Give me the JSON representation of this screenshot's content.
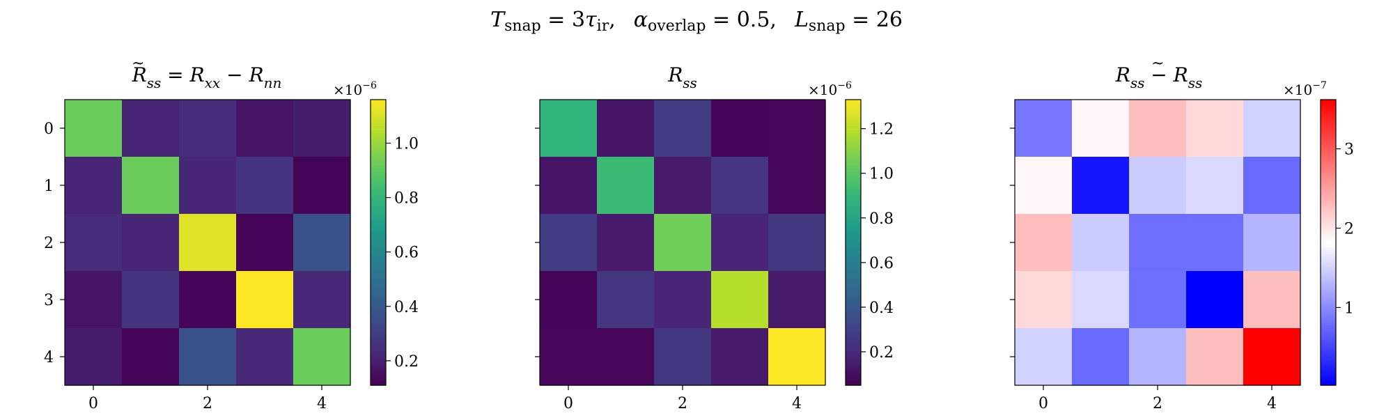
{
  "figure": {
    "suptitle": {
      "t_sym": "T",
      "t_sub": "snap",
      "t_rhs": " = 3",
      "tau_sym": "τ",
      "tau_sub": "ir",
      "sep1": ",",
      "a_sym": "α",
      "a_sub": "overlap",
      "a_rhs": " = 0.5",
      "sep2": ",",
      "l_sym": "L",
      "l_sub": "snap",
      "l_rhs": " = 26"
    }
  },
  "panels": [
    {
      "title": {
        "r1": "R",
        "tilde": "~",
        "s1": "ss",
        "eq": " = ",
        "r2": "R",
        "s2": "xx",
        "minus": " − ",
        "r3": "R",
        "s3": "nn"
      },
      "yticks": [
        "0",
        "1",
        "2",
        "3",
        "4"
      ],
      "xticks": [
        "0",
        "2",
        "4"
      ],
      "colorbar": {
        "offset_base": "×10",
        "offset_exp": "−6",
        "ticks": [
          "0.2",
          "0.4",
          "0.6",
          "0.8",
          "1.0"
        ]
      }
    },
    {
      "title": {
        "r1": "R",
        "s1": "ss"
      },
      "xticks": [
        "0",
        "2",
        "4"
      ],
      "colorbar": {
        "offset_base": "×10",
        "offset_exp": "−6",
        "ticks": [
          "0.2",
          "0.4",
          "0.6",
          "0.8",
          "1.0",
          "1.2"
        ]
      }
    },
    {
      "title": {
        "r1": "R",
        "s1": "ss",
        "minus": " − ",
        "r2": "R",
        "tilde": "~",
        "s2": "ss"
      },
      "xticks": [
        "0",
        "2",
        "4"
      ],
      "colorbar": {
        "offset_base": "×10",
        "offset_exp": "−7",
        "ticks": [
          "1",
          "2",
          "3"
        ]
      }
    }
  ],
  "chart_data": [
    {
      "type": "heatmap",
      "colormap": "viridis",
      "x": [
        0,
        1,
        2,
        3,
        4
      ],
      "y": [
        0,
        1,
        2,
        3,
        4
      ],
      "scale": 1e-06,
      "vmin": 0.11,
      "vmax": 1.16,
      "colorbar_ticks": [
        0.2,
        0.4,
        0.6,
        0.8,
        1.0
      ],
      "values": [
        [
          0.92,
          0.22,
          0.24,
          0.17,
          0.19
        ],
        [
          0.22,
          0.92,
          0.22,
          0.27,
          0.12
        ],
        [
          0.24,
          0.22,
          1.11,
          0.12,
          0.37
        ],
        [
          0.17,
          0.27,
          0.12,
          1.16,
          0.23
        ],
        [
          0.19,
          0.12,
          0.37,
          0.23,
          0.92
        ]
      ]
    },
    {
      "type": "heatmap",
      "colormap": "viridis",
      "x": [
        0,
        1,
        2,
        3,
        4
      ],
      "y": [
        0,
        1,
        2,
        3,
        4
      ],
      "scale": 1e-06,
      "vmin": 0.05,
      "vmax": 1.33,
      "colorbar_ticks": [
        0.2,
        0.4,
        0.6,
        0.8,
        1.0,
        1.2
      ],
      "values": [
        [
          0.88,
          0.12,
          0.28,
          0.06,
          0.07
        ],
        [
          0.12,
          0.92,
          0.14,
          0.25,
          0.07
        ],
        [
          0.28,
          0.14,
          1.05,
          0.18,
          0.26
        ],
        [
          0.06,
          0.25,
          0.18,
          1.19,
          0.14
        ],
        [
          0.07,
          0.07,
          0.26,
          0.14,
          1.33
        ]
      ]
    },
    {
      "type": "heatmap",
      "colormap": "bwr",
      "x": [
        0,
        1,
        2,
        3,
        4
      ],
      "y": [
        0,
        1,
        2,
        3,
        4
      ],
      "scale": 1e-07,
      "vmin": 0.02,
      "vmax": 3.62,
      "colorbar_ticks": [
        1,
        2,
        3
      ],
      "values": [
        [
          0.85,
          1.88,
          2.28,
          2.09,
          1.5
        ],
        [
          1.88,
          0.17,
          1.45,
          1.55,
          0.76
        ],
        [
          2.28,
          1.45,
          0.79,
          0.8,
          1.3
        ],
        [
          2.09,
          1.55,
          0.8,
          0.02,
          2.28
        ],
        [
          1.5,
          0.76,
          1.3,
          2.28,
          3.62
        ]
      ]
    }
  ]
}
